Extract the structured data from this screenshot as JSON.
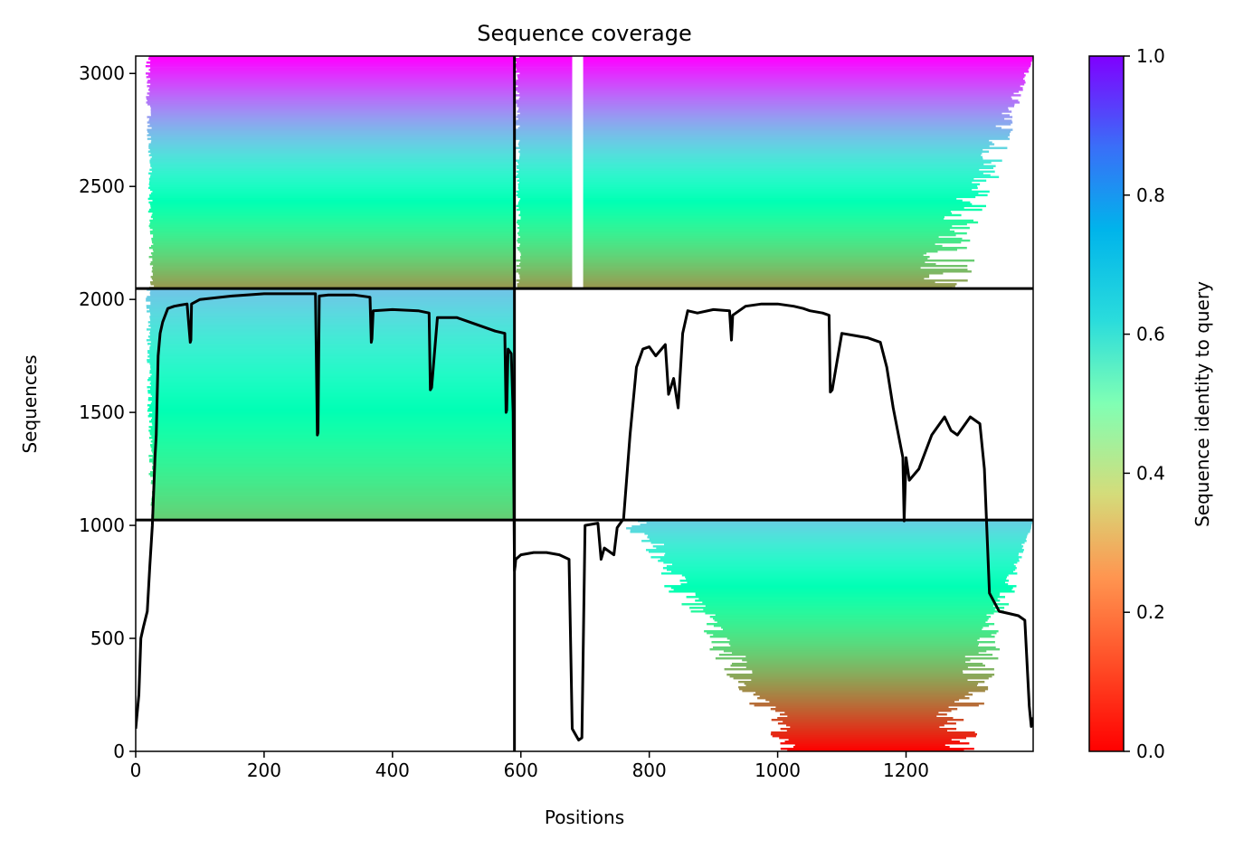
{
  "chart_data": {
    "type": "heatmap",
    "title": "Sequence coverage",
    "xlabel": "Positions",
    "ylabel": "Sequences",
    "xlim": [
      0,
      1398
    ],
    "ylim": [
      0,
      3077
    ],
    "x_ticks": [
      "0",
      "200",
      "400",
      "600",
      "800",
      "1000",
      "1200"
    ],
    "y_ticks": [
      "0",
      "500",
      "1000",
      "1500",
      "2000",
      "2500",
      "3000"
    ],
    "colorbar": {
      "label": "Sequence identity to query",
      "colormap": "rainbow",
      "range": [
        0.0,
        1.0
      ],
      "ticks": [
        "0.0",
        "0.2",
        "0.4",
        "0.6",
        "0.8",
        "1.0"
      ]
    },
    "block_boundaries": {
      "x": [
        590
      ],
      "y": [
        1024,
        2048
      ]
    },
    "blocks": [
      {
        "x_range": [
          0,
          590
        ],
        "y_range": [
          2048,
          3077
        ],
        "identity_range": [
          0.2,
          1.0
        ],
        "coverage_start": 25,
        "coverage_end": 590
      },
      {
        "x_range": [
          590,
          1398
        ],
        "y_range": [
          2048,
          3077
        ],
        "identity_range": [
          0.2,
          1.0
        ],
        "coverage_start": 600,
        "coverage_end": 1398
      },
      {
        "x_range": [
          0,
          590
        ],
        "y_range": [
          1024,
          2048
        ],
        "identity_range": [
          0.3,
          0.72
        ],
        "coverage_start": 25,
        "coverage_end": 590
      },
      {
        "x_range": [
          590,
          1398
        ],
        "y_range": [
          0,
          1024
        ],
        "identity_range": [
          0.0,
          0.7
        ],
        "coverage_start": 760,
        "coverage_end": 1398
      }
    ],
    "coverage_line": {
      "x": [
        0,
        5,
        8,
        12,
        18,
        22,
        26,
        30,
        32,
        35,
        38,
        42,
        50,
        60,
        70,
        80,
        85,
        86,
        87,
        100,
        150,
        200,
        250,
        280,
        283,
        284,
        286,
        300,
        320,
        340,
        365,
        367,
        368,
        370,
        400,
        440,
        457,
        459,
        461,
        470,
        500,
        520,
        540,
        560,
        575,
        577,
        578,
        580,
        585,
        588,
        590,
        591,
        592,
        600,
        620,
        640,
        660,
        675,
        680,
        690,
        695,
        700,
        720,
        725,
        730,
        745,
        750,
        760,
        770,
        780,
        790,
        800,
        810,
        825,
        830,
        838,
        845,
        852,
        860,
        875,
        900,
        925,
        928,
        930,
        950,
        975,
        1000,
        1025,
        1040,
        1050,
        1070,
        1080,
        1082,
        1085,
        1100,
        1120,
        1140,
        1160,
        1170,
        1180,
        1195,
        1197,
        1200,
        1205,
        1220,
        1240,
        1260,
        1270,
        1280,
        1300,
        1315,
        1322,
        1330,
        1345,
        1360,
        1375,
        1385,
        1392,
        1395,
        1398
      ],
      "y": [
        100,
        250,
        500,
        550,
        620,
        820,
        1000,
        1300,
        1400,
        1750,
        1850,
        1900,
        1960,
        1970,
        1975,
        1980,
        1810,
        1820,
        1980,
        2000,
        2015,
        2025,
        2025,
        2025,
        1400,
        1410,
        2015,
        2020,
        2020,
        2020,
        2010,
        1810,
        1825,
        1950,
        1955,
        1950,
        1940,
        1600,
        1610,
        1920,
        1920,
        1900,
        1880,
        1860,
        1850,
        1500,
        1510,
        1780,
        1760,
        1500,
        800,
        820,
        850,
        870,
        880,
        880,
        870,
        850,
        100,
        50,
        60,
        1000,
        1010,
        850,
        900,
        870,
        990,
        1030,
        1400,
        1700,
        1780,
        1790,
        1750,
        1800,
        1580,
        1650,
        1520,
        1850,
        1950,
        1940,
        1955,
        1950,
        1820,
        1930,
        1970,
        1980,
        1980,
        1970,
        1960,
        1950,
        1940,
        1930,
        1590,
        1600,
        1850,
        1840,
        1830,
        1810,
        1700,
        1520,
        1300,
        1020,
        1300,
        1200,
        1250,
        1400,
        1480,
        1420,
        1400,
        1480,
        1450,
        1250,
        700,
        620,
        610,
        600,
        580,
        200,
        110,
        150
      ]
    }
  }
}
